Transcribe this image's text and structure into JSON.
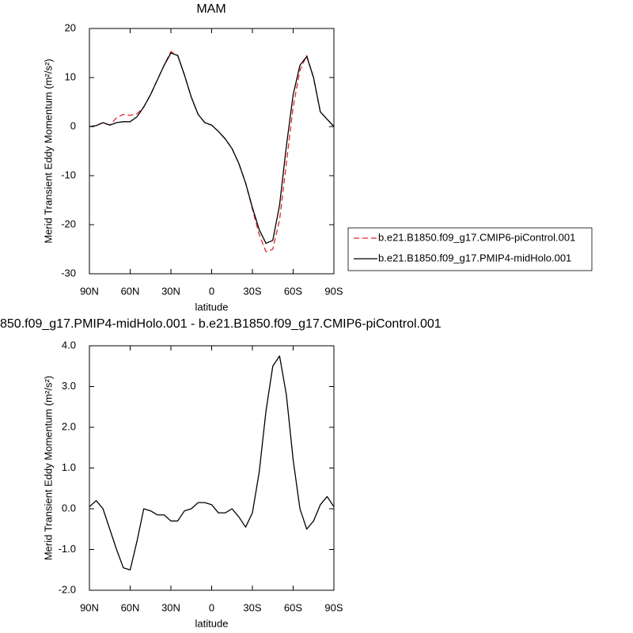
{
  "chart_data": [
    {
      "type": "line",
      "title": "MAM",
      "x_label": "latitude",
      "y_label": "Merid Transient Eddy Momentum (m²/s²)",
      "x": [
        90,
        85,
        80,
        75,
        70,
        65,
        60,
        55,
        50,
        45,
        40,
        35,
        30,
        25,
        20,
        15,
        10,
        5,
        0,
        -5,
        -10,
        -15,
        -20,
        -25,
        -30,
        -35,
        -40,
        -45,
        -50,
        -55,
        -60,
        -65,
        -70,
        -75,
        -80,
        -85,
        -90
      ],
      "series": [
        {
          "name": "b.e21.B1850.f09_g17.CMIP6-piControl.001",
          "color": "#e8232b",
          "dashed": true,
          "values": [
            0,
            0.2,
            0.8,
            0.3,
            1.8,
            2.5,
            2.3,
            2.6,
            4.0,
            6.5,
            9.5,
            12.5,
            15.3,
            14.5,
            10.5,
            6.0,
            2.5,
            0.8,
            0.3,
            -1.0,
            -2.5,
            -4.5,
            -7.5,
            -11.5,
            -16.8,
            -22.0,
            -25.5,
            -25.0,
            -19.0,
            -7.5,
            4.0,
            11.5,
            14.5,
            10.0,
            3.0,
            1.5,
            0
          ]
        },
        {
          "name": "b.e21.B1850.f09_g17.PMIP4-midHolo.001",
          "color": "#000000",
          "dashed": false,
          "values": [
            0,
            0.2,
            0.8,
            0.3,
            0.8,
            1.0,
            1.0,
            2.0,
            4.0,
            6.5,
            9.5,
            12.5,
            15.0,
            14.5,
            10.5,
            6.0,
            2.5,
            0.8,
            0.3,
            -1.0,
            -2.5,
            -4.5,
            -7.5,
            -11.5,
            -16.5,
            -21.0,
            -23.8,
            -23.2,
            -16.0,
            -4.0,
            6.5,
            12.5,
            14.3,
            10.0,
            3.0,
            1.5,
            0
          ]
        }
      ],
      "xlim": [
        90,
        -90
      ],
      "xticks": [
        {
          "value": 90,
          "label": "90N"
        },
        {
          "value": 60,
          "label": "60N"
        },
        {
          "value": 30,
          "label": "30N"
        },
        0,
        {
          "value": -30,
          "label": "30S"
        },
        {
          "value": -60,
          "label": "60S"
        },
        {
          "value": -90,
          "label": "90S"
        }
      ],
      "ylim": [
        -30,
        20
      ],
      "yticks": [
        -30,
        -20,
        -10,
        0,
        10,
        20
      ],
      "legend": "right"
    },
    {
      "type": "line",
      "title": "850.f09_g17.PMIP4-midHolo.001 - b.e21.B1850.f09_g17.CMIP6-piControl.001",
      "x_label": "latitude",
      "y_label": "Merid Transient Eddy Momentum (m²/s²)",
      "x": [
        90,
        85,
        80,
        75,
        70,
        65,
        60,
        55,
        50,
        45,
        40,
        35,
        30,
        25,
        20,
        15,
        10,
        5,
        0,
        -5,
        -10,
        -15,
        -20,
        -25,
        -30,
        -35,
        -40,
        -45,
        -50,
        -55,
        -60,
        -65,
        -70,
        -75,
        -80,
        -85,
        -90
      ],
      "series": [
        {
          "color": "#000000",
          "dashed": false,
          "values": [
            0.05,
            0.2,
            0.0,
            -0.5,
            -1.0,
            -1.45,
            -1.5,
            -0.8,
            0.0,
            -0.05,
            -0.15,
            -0.15,
            -0.3,
            -0.3,
            -0.05,
            0.0,
            0.15,
            0.15,
            0.1,
            -0.1,
            -0.1,
            0.0,
            -0.2,
            -0.45,
            -0.1,
            0.9,
            2.4,
            3.5,
            3.75,
            2.8,
            1.2,
            0.0,
            -0.5,
            -0.3,
            0.1,
            0.3,
            0.05
          ]
        }
      ],
      "xlim": [
        90,
        -90
      ],
      "xticks": [
        {
          "value": 90,
          "label": "90N"
        },
        {
          "value": 60,
          "label": "60N"
        },
        {
          "value": 30,
          "label": "30N"
        },
        0,
        {
          "value": -30,
          "label": "30S"
        },
        {
          "value": -60,
          "label": "60S"
        },
        {
          "value": -90,
          "label": "90S"
        }
      ],
      "ylim": [
        -2,
        4
      ],
      "yticks": [
        {
          "value": -2,
          "label": "-2.0"
        },
        {
          "value": -1,
          "label": "-1.0"
        },
        {
          "value": 0,
          "label": "0.0"
        },
        {
          "value": 1,
          "label": "1.0"
        },
        {
          "value": 2,
          "label": "2.0"
        },
        {
          "value": 3,
          "label": "3.0"
        },
        {
          "value": 4,
          "label": "4.0"
        }
      ]
    }
  ]
}
